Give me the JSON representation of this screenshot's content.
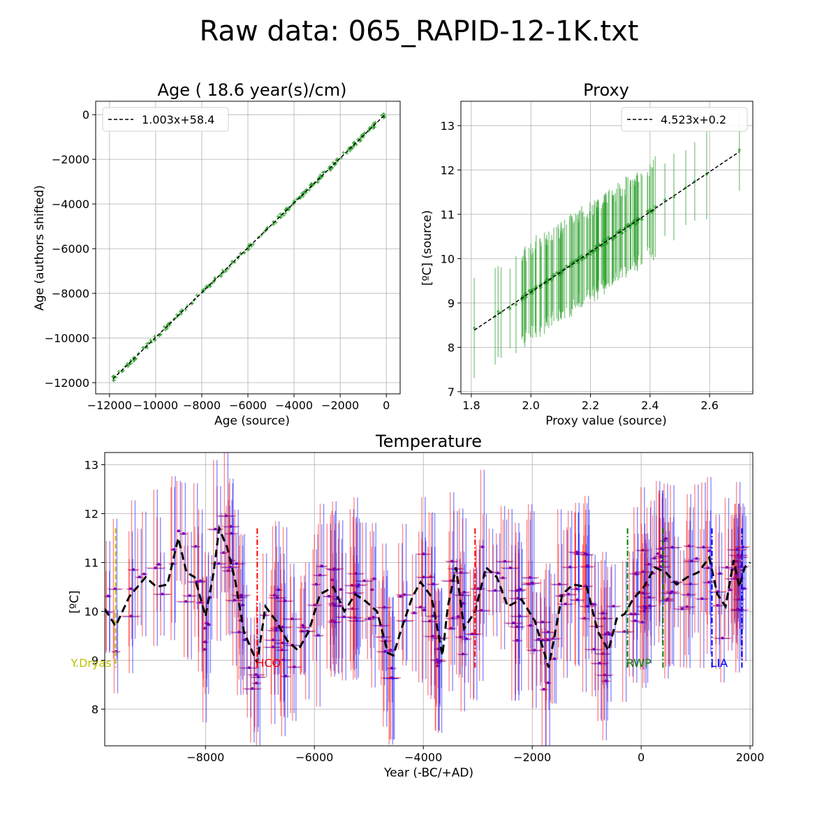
{
  "figure_title": "Raw data: 065_RAPID-12-1K.txt",
  "colors": {
    "green": "#2ca02c",
    "dark_green": "#1a7a1a",
    "red": "#ff0000",
    "blue": "#0000ff",
    "purple": "#7f00bf",
    "yellow": "#bfbf00",
    "grid": "#b0b0b0"
  },
  "chart_data": [
    {
      "id": "age",
      "type": "scatter",
      "title": "Age ( 18.6 year(s)/cm)",
      "xlabel": "Age (source)",
      "ylabel": "Age (authors shifted)",
      "xlim": [
        -12600,
        600
      ],
      "ylim": [
        -12500,
        600
      ],
      "xticks": [
        -12000,
        -10000,
        -8000,
        -6000,
        -4000,
        -2000,
        0
      ],
      "xtick_labels": [
        "−12000",
        "−10000",
        "−8000",
        "−6000",
        "−4000",
        "−2000",
        "0"
      ],
      "yticks": [
        -12000,
        -10000,
        -8000,
        -6000,
        -4000,
        -2000,
        0
      ],
      "ytick_labels": [
        "−12000",
        "−10000",
        "−8000",
        "−6000",
        "−4000",
        "−2000",
        "0"
      ],
      "legend": [
        "1.003x+58.4"
      ],
      "legend_position": "upper-left",
      "fit": {
        "slope": 1.003,
        "intercept": 58.4
      },
      "x_range": [
        -11850,
        -30
      ]
    },
    {
      "id": "proxy",
      "type": "scatter",
      "title": "Proxy",
      "xlabel": "Proxy value (source)",
      "ylabel": "[ºC] (source)",
      "xlim": [
        1.765,
        2.745
      ],
      "ylim": [
        6.95,
        13.55
      ],
      "xticks": [
        1.8,
        2.0,
        2.2,
        2.4,
        2.6
      ],
      "xtick_labels": [
        "1.8",
        "2.0",
        "2.2",
        "2.4",
        "2.6"
      ],
      "yticks": [
        7,
        8,
        9,
        10,
        11,
        12,
        13
      ],
      "ytick_labels": [
        "7",
        "8",
        "9",
        "10",
        "11",
        "12",
        "13"
      ],
      "legend": [
        "4.523x+0.2"
      ],
      "legend_position": "upper-right",
      "fit": {
        "slope": 4.523,
        "intercept": 0.2
      },
      "x_range": [
        1.81,
        2.7
      ],
      "error_half_width": 1.0,
      "points_x": [
        1.81,
        1.88,
        1.89,
        1.9,
        1.93,
        1.95,
        1.97,
        2.0,
        2.03,
        2.05,
        2.1,
        2.15,
        2.2,
        2.25,
        2.3,
        2.35,
        2.4,
        2.45,
        2.48,
        2.52,
        2.55,
        2.59,
        2.7
      ]
    },
    {
      "id": "temperature",
      "type": "line",
      "title": "Temperature",
      "xlabel": "Year (-BC/+AD)",
      "ylabel": "[ºC]",
      "xlim": [
        -9850,
        2050
      ],
      "ylim": [
        7.25,
        13.25
      ],
      "xticks": [
        -8000,
        -6000,
        -4000,
        -2000,
        0,
        2000
      ],
      "xtick_labels": [
        "−8000",
        "−6000",
        "−4000",
        "−2000",
        "0",
        "2000"
      ],
      "yticks": [
        8,
        9,
        10,
        11,
        12,
        13
      ],
      "ytick_labels": [
        "8",
        "9",
        "10",
        "11",
        "12",
        "13"
      ],
      "smooth_x": [
        -9850,
        -9650,
        -9400,
        -9100,
        -8900,
        -8700,
        -8500,
        -8350,
        -8200,
        -8000,
        -7850,
        -7750,
        -7600,
        -7450,
        -7300,
        -7150,
        -7050,
        -6900,
        -6700,
        -6500,
        -6300,
        -6100,
        -5900,
        -5650,
        -5450,
        -5250,
        -5050,
        -4850,
        -4650,
        -4550,
        -4400,
        -4200,
        -4050,
        -3850,
        -3650,
        -3550,
        -3400,
        -3250,
        -3050,
        -2850,
        -2650,
        -2450,
        -2200,
        -1950,
        -1700,
        -1450,
        -1250,
        -1000,
        -800,
        -600,
        -450,
        -300,
        -150,
        50,
        250,
        450,
        650,
        850,
        1050,
        1250,
        1400,
        1550,
        1700,
        1800,
        1900,
        2000
      ],
      "smooth_y": [
        10.05,
        9.7,
        10.3,
        10.7,
        10.5,
        10.55,
        11.5,
        10.8,
        10.7,
        9.9,
        10.8,
        11.7,
        11.3,
        10.6,
        9.6,
        9.2,
        8.95,
        10.1,
        9.8,
        9.4,
        9.2,
        9.6,
        10.35,
        10.5,
        10.0,
        10.35,
        10.2,
        10.0,
        9.15,
        9.1,
        9.65,
        10.3,
        10.6,
        10.3,
        9.1,
        10.1,
        10.9,
        9.65,
        10.0,
        10.9,
        10.7,
        10.1,
        10.25,
        9.8,
        8.85,
        10.35,
        10.55,
        10.5,
        9.6,
        9.2,
        9.85,
        9.95,
        10.25,
        10.5,
        10.9,
        10.8,
        10.55,
        10.7,
        10.8,
        11.1,
        10.35,
        10.1,
        11.05,
        10.5,
        10.9,
        11.0
      ],
      "events": [
        {
          "label": "Y.Dryas",
          "color": "#bfbf00",
          "linestyle": "dashed",
          "x": [
            -9650,
            -9650
          ]
        },
        {
          "label": "HCO",
          "color": "#ff0000",
          "linestyle": "dashdot",
          "x": [
            -7050,
            -3050
          ]
        },
        {
          "label": "RWP",
          "color": "#008000",
          "linestyle": "dashdot",
          "x": [
            -250,
            400
          ]
        },
        {
          "label": "LIA",
          "color": "#0000ff",
          "linestyle": "dashdot",
          "x": [
            1300,
            1850
          ]
        }
      ]
    }
  ]
}
